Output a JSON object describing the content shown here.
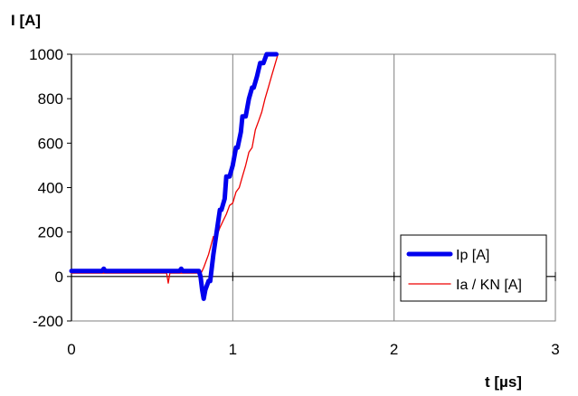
{
  "chart_data": {
    "type": "line",
    "xlabel": "t  [µs]",
    "ylabel": "I  [A]",
    "xlim": [
      0,
      3
    ],
    "ylim": [
      -200,
      1000
    ],
    "x_ticks": [
      "0",
      "1",
      "2",
      "3"
    ],
    "x_tick_values": [
      0,
      1,
      2,
      3
    ],
    "y_ticks": [
      "-200",
      "0",
      "200",
      "400",
      "600",
      "800",
      "1000"
    ],
    "y_tick_values": [
      -200,
      0,
      200,
      400,
      600,
      800,
      1000
    ],
    "grid": "vertical",
    "legend_position": "bottom-right",
    "series": [
      {
        "name": "Ip  [A]",
        "color": "#0000ee",
        "x": [
          0.0,
          0.19,
          0.2,
          0.21,
          0.67,
          0.68,
          0.69,
          0.79,
          0.8,
          0.81,
          0.82,
          0.83,
          0.85,
          0.86,
          0.88,
          0.9,
          0.92,
          0.93,
          0.95,
          0.96,
          0.98,
          1.0,
          1.02,
          1.03,
          1.05,
          1.06,
          1.08,
          1.1,
          1.12,
          1.13,
          1.15,
          1.17,
          1.19,
          1.21,
          1.23,
          1.25,
          1.27
        ],
        "y": [
          25,
          25,
          35,
          25,
          25,
          35,
          25,
          25,
          0,
          -60,
          -100,
          -60,
          -20,
          -20,
          100,
          200,
          300,
          300,
          350,
          450,
          450,
          500,
          580,
          580,
          650,
          720,
          720,
          800,
          850,
          850,
          900,
          960,
          960,
          1000,
          1000,
          1000,
          1000
        ]
      },
      {
        "name": "Ia / KN [A]",
        "color": "#ee0000",
        "x": [
          0.0,
          0.59,
          0.6,
          0.61,
          0.79,
          0.8,
          0.82,
          0.85,
          0.88,
          0.9,
          0.92,
          0.94,
          0.96,
          0.98,
          1.0,
          1.02,
          1.04,
          1.06,
          1.08,
          1.1,
          1.12,
          1.14,
          1.16,
          1.18,
          1.2,
          1.22,
          1.24,
          1.26,
          1.28
        ],
        "y": [
          15,
          15,
          -30,
          15,
          15,
          10,
          40,
          100,
          180,
          180,
          220,
          250,
          280,
          320,
          330,
          380,
          400,
          450,
          500,
          560,
          580,
          660,
          700,
          740,
          800,
          850,
          900,
          950,
          1000
        ]
      }
    ]
  },
  "legend": {
    "items": [
      {
        "label": "Ip  [A]",
        "color": "#0000ee"
      },
      {
        "label": "Ia / KN [A]",
        "color": "#ee0000"
      }
    ]
  }
}
